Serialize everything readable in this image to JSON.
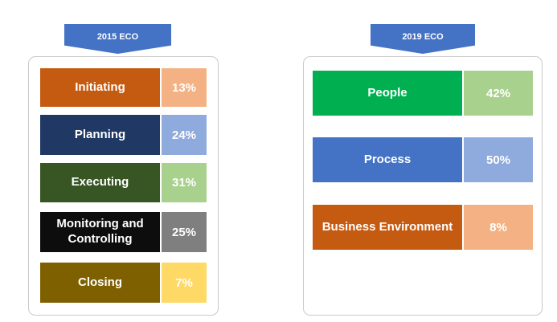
{
  "left": {
    "title": "2015 ECO",
    "items": [
      {
        "label": "Initiating",
        "value": "13%",
        "color": "#c55a11",
        "value_color": "#f4b183"
      },
      {
        "label": "Planning",
        "value": "24%",
        "color": "#1f3864",
        "value_color": "#8faadc"
      },
      {
        "label": "Executing",
        "value": "31%",
        "color": "#375623",
        "value_color": "#a9d18e"
      },
      {
        "label": "Monitoring and Controlling",
        "value": "25%",
        "color": "#0d0d0d",
        "value_color": "#7f7f7f"
      },
      {
        "label": "Closing",
        "value": "7%",
        "color": "#7f6000",
        "value_color": "#ffd966"
      }
    ]
  },
  "right": {
    "title": "2019 ECO",
    "items": [
      {
        "label": "People",
        "value": "42%",
        "color": "#00b050",
        "value_color": "#a9d18e"
      },
      {
        "label": "Process",
        "value": "50%",
        "color": "#4472c4",
        "value_color": "#8faadc"
      },
      {
        "label": "Business Environment",
        "value": "8%",
        "color": "#c55a11",
        "value_color": "#f4b183"
      }
    ]
  }
}
